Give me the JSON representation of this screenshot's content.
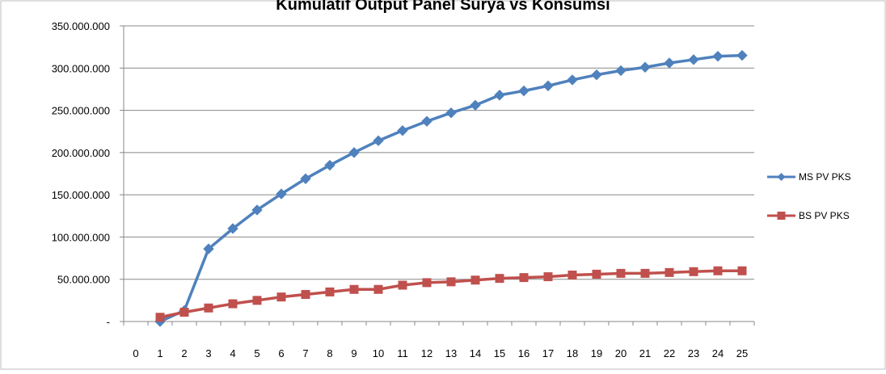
{
  "chart_data": {
    "type": "line",
    "title": "Kumulatif Output Panel Surya vs Konsumsi",
    "x": [
      1,
      2,
      3,
      4,
      5,
      6,
      7,
      8,
      9,
      10,
      11,
      12,
      13,
      14,
      15,
      16,
      17,
      18,
      19,
      20,
      21,
      22,
      23,
      24,
      25
    ],
    "x_ticks": [
      "0",
      "1",
      "2",
      "3",
      "4",
      "5",
      "6",
      "7",
      "8",
      "9",
      "10",
      "11",
      "12",
      "13",
      "14",
      "15",
      "16",
      "17",
      "18",
      "19",
      "20",
      "21",
      "22",
      "23",
      "24",
      "25"
    ],
    "y_ticks": [
      "-",
      "50.000.000",
      "100.000.000",
      "150.000.000",
      "200.000.000",
      "250.000.000",
      "300.000.000",
      "350.000.000"
    ],
    "ylim": [
      0,
      350000000
    ],
    "grid": true,
    "legend_position": "right",
    "series": [
      {
        "name": "MS PV PKS",
        "color": "#4f81bd",
        "marker": "diamond",
        "values": [
          0,
          13000000,
          86000000,
          110000000,
          132000000,
          151000000,
          169000000,
          185000000,
          200000000,
          214000000,
          226000000,
          237000000,
          247000000,
          256000000,
          268000000,
          273000000,
          279000000,
          286000000,
          292000000,
          297000000,
          301000000,
          306000000,
          310000000,
          314000000,
          315000000
        ]
      },
      {
        "name": "BS PV PKS",
        "color": "#c0504d",
        "marker": "square",
        "values": [
          5000000,
          11000000,
          16000000,
          21000000,
          25000000,
          29000000,
          32000000,
          35000000,
          38000000,
          38000000,
          43000000,
          46000000,
          47000000,
          49000000,
          51000000,
          52000000,
          53000000,
          55000000,
          56000000,
          57000000,
          57000000,
          58000000,
          59000000,
          60000000,
          60000000
        ]
      }
    ]
  }
}
